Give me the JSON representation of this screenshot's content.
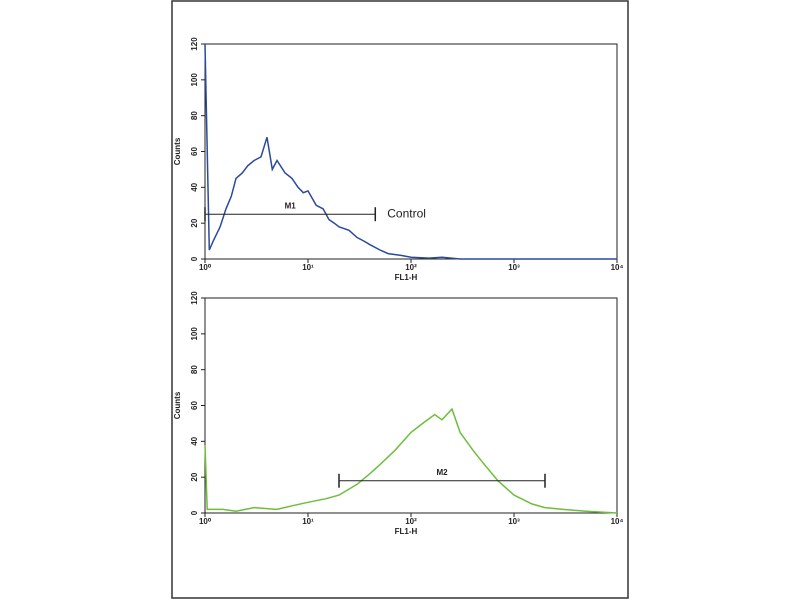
{
  "chart_data": [
    {
      "type": "line",
      "xlabel": "FL1-H",
      "ylabel": "Counts",
      "xscale": "log",
      "xlim": [
        1,
        10000
      ],
      "ylim": [
        0,
        120
      ],
      "xticks": [
        {
          "value": 1,
          "label": "10⁰"
        },
        {
          "value": 10,
          "label": "10¹"
        },
        {
          "value": 100,
          "label": "10²"
        },
        {
          "value": 1000,
          "label": "10³"
        },
        {
          "value": 10000,
          "label": "10⁴"
        }
      ],
      "yticks": [
        0,
        20,
        40,
        60,
        80,
        100,
        120
      ],
      "series": [
        {
          "color": "#2b4a9c",
          "x": [
            1,
            1.1,
            1.2,
            1.4,
            1.6,
            1.8,
            2,
            2.3,
            2.6,
            3,
            3.5,
            4,
            4.5,
            5,
            6,
            7,
            8,
            9,
            10,
            12,
            14,
            16,
            18,
            20,
            25,
            30,
            35,
            40,
            50,
            60,
            80,
            100,
            150,
            200,
            300,
            500,
            1000,
            2000,
            5000,
            10000
          ],
          "values": [
            120,
            5,
            10,
            18,
            28,
            35,
            45,
            48,
            52,
            55,
            57,
            68,
            50,
            55,
            48,
            45,
            40,
            37,
            38,
            30,
            28,
            22,
            20,
            18,
            16,
            12,
            10,
            8,
            5,
            3,
            2,
            1,
            0.5,
            1,
            0,
            0,
            0,
            0,
            0,
            0
          ]
        }
      ],
      "marker": {
        "label": "M1",
        "x": [
          1,
          45
        ],
        "y": 25
      },
      "annotation": "Control"
    },
    {
      "type": "line",
      "xlabel": "FL1-H",
      "ylabel": "Counts",
      "xscale": "log",
      "xlim": [
        1,
        10000
      ],
      "ylim": [
        0,
        120
      ],
      "xticks": [
        {
          "value": 1,
          "label": "10⁰"
        },
        {
          "value": 10,
          "label": "10¹"
        },
        {
          "value": 100,
          "label": "10²"
        },
        {
          "value": 1000,
          "label": "10³"
        },
        {
          "value": 10000,
          "label": "10⁴"
        }
      ],
      "yticks": [
        0,
        20,
        40,
        60,
        80,
        100,
        120
      ],
      "series": [
        {
          "color": "#6cbf3a",
          "x": [
            1,
            1.05,
            1.5,
            2,
            3,
            5,
            7,
            10,
            15,
            20,
            30,
            40,
            50,
            70,
            100,
            130,
            170,
            200,
            250,
            300,
            400,
            500,
            700,
            1000,
            1500,
            2000,
            3000,
            5000,
            10000
          ],
          "values": [
            38,
            2,
            2,
            1,
            3,
            2,
            4,
            6,
            8,
            10,
            16,
            22,
            27,
            35,
            45,
            50,
            55,
            52,
            58,
            45,
            35,
            28,
            18,
            10,
            5,
            3,
            2,
            1,
            0
          ]
        }
      ],
      "marker": {
        "label": "M2",
        "x": [
          20,
          2000
        ],
        "y": 18
      }
    }
  ]
}
